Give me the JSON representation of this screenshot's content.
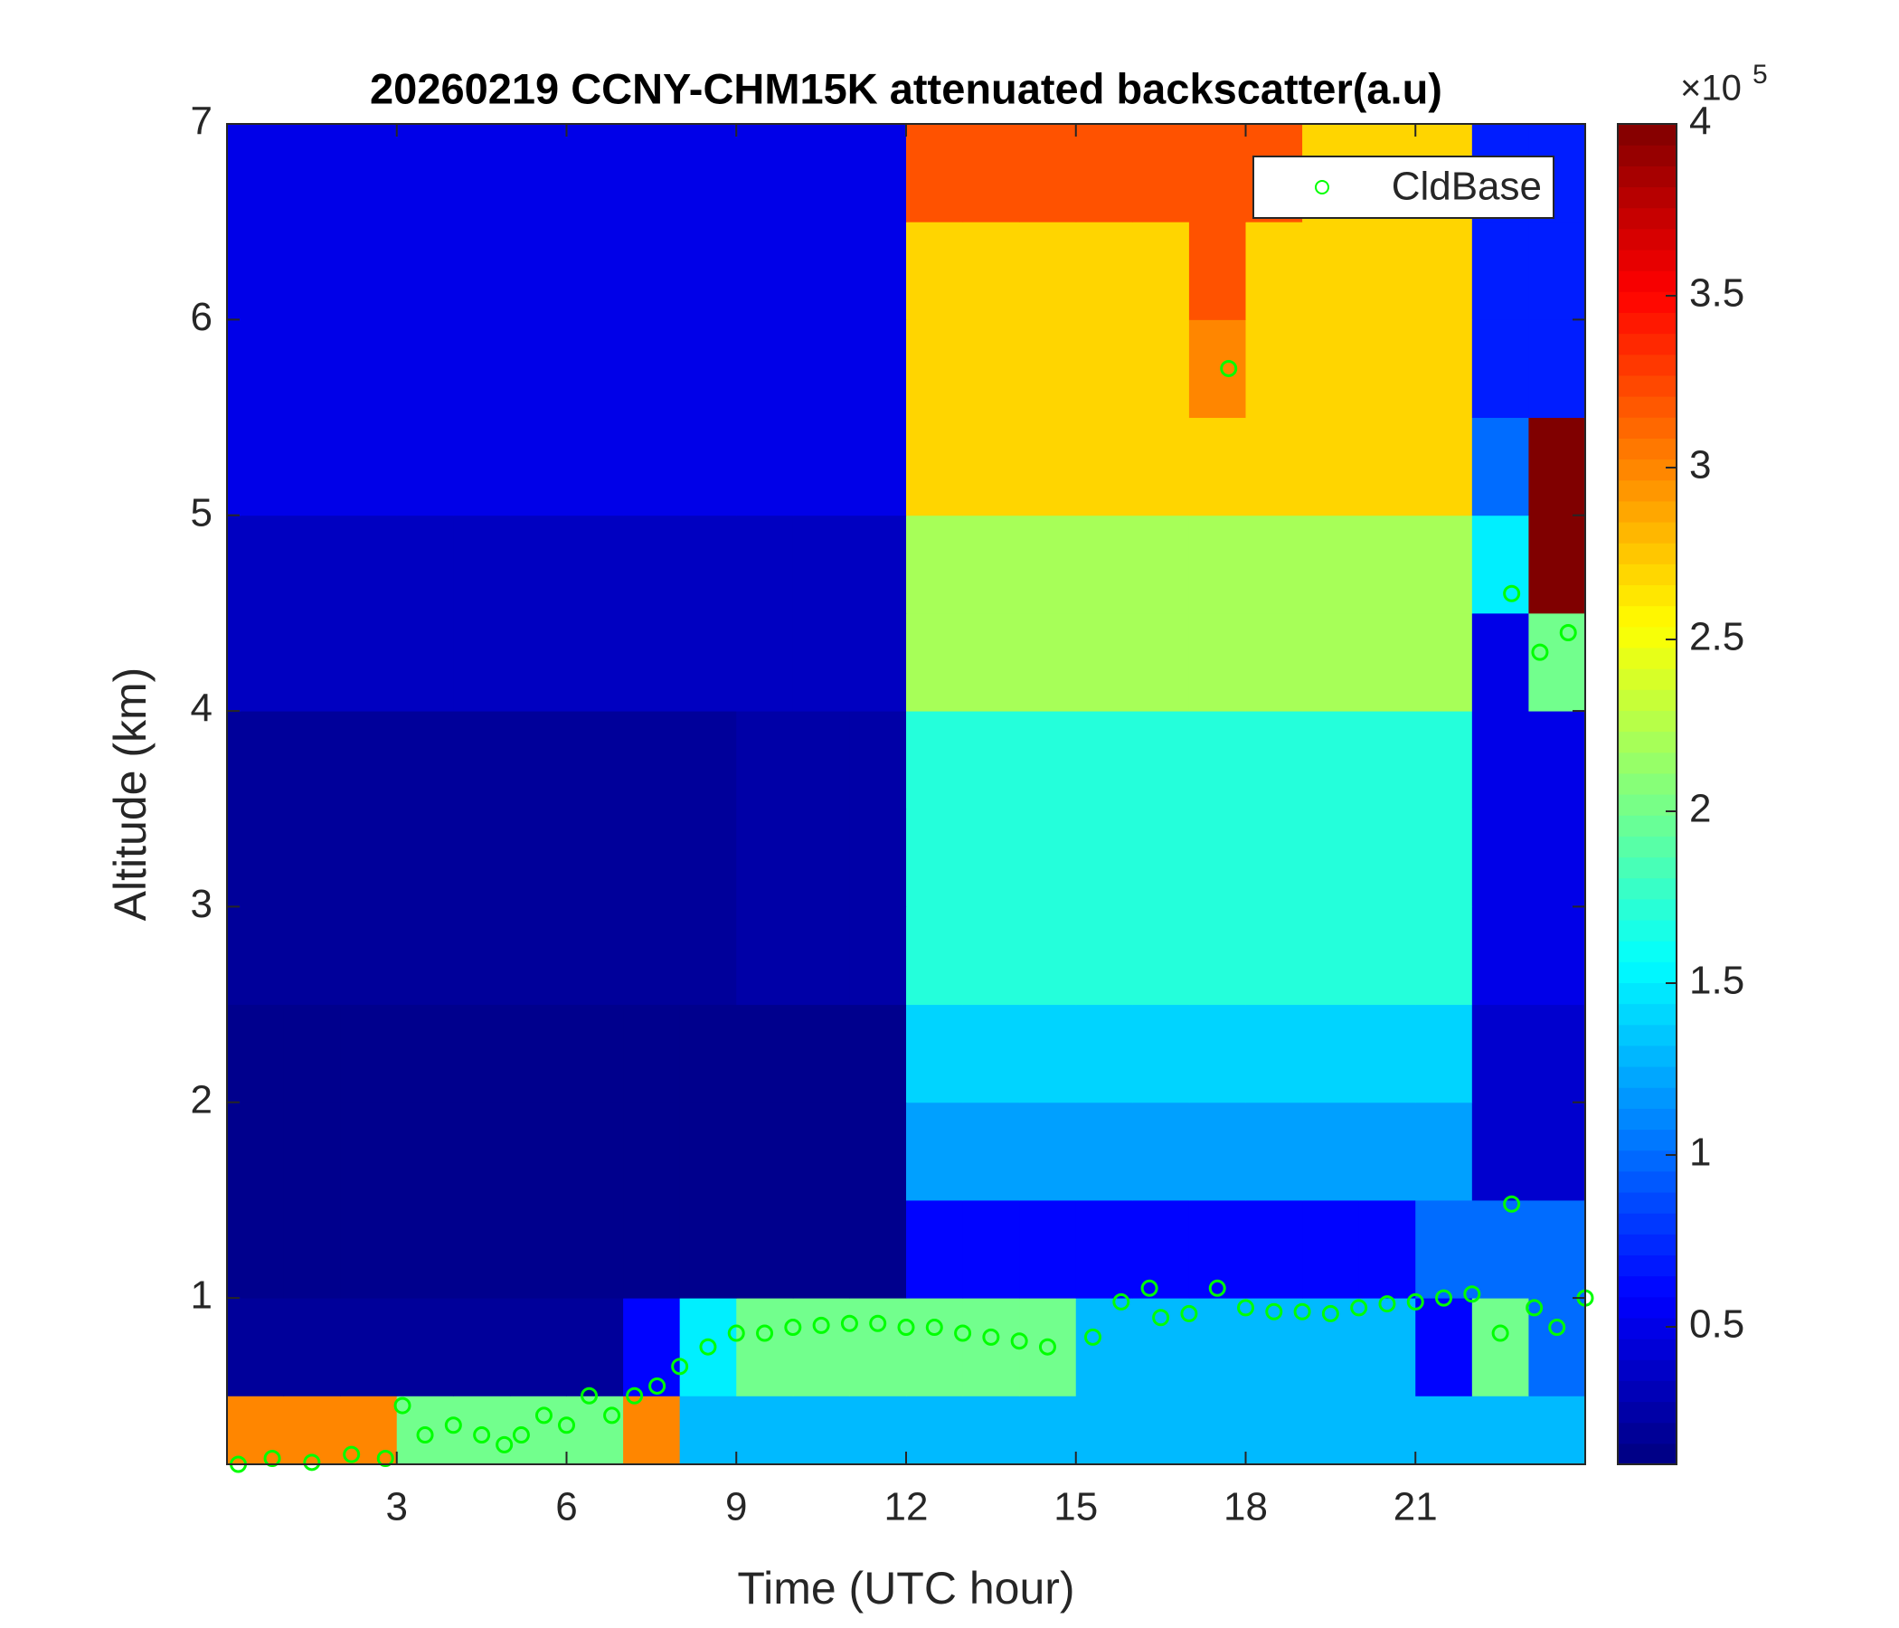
{
  "chart_data": {
    "type": "heatmap",
    "title": "20260219 CCNY-CHM15K attenuated backscatter(a.u)",
    "x_label": "Time (UTC hour)",
    "y_label": "Altitude (km)",
    "colorbar_multiplier": "×10",
    "colorbar_exponent": "5",
    "colormap": "jet",
    "x": [
      0.5,
      1.5,
      2.5,
      3.5,
      4.5,
      5.5,
      6.5,
      7.5,
      8.5,
      9.5,
      10.5,
      11.5,
      12.5,
      13.5,
      14.5,
      15.5,
      16.5,
      17.5,
      18.5,
      19.5,
      20.5,
      21.5,
      22.5,
      23.5
    ],
    "y": [
      0.25,
      0.75,
      1.25,
      1.75,
      2.25,
      2.75,
      3.25,
      3.75,
      4.25,
      4.75,
      5.25,
      5.75,
      6.25,
      6.75
    ],
    "z": [
      [
        300000,
        300000,
        300000,
        200000,
        200000,
        200000,
        200000,
        300000,
        130000,
        130000,
        130000,
        130000,
        130000,
        130000,
        130000,
        130000,
        130000,
        130000,
        130000,
        130000,
        130000,
        130000,
        130000,
        130000
      ],
      [
        20000,
        20000,
        20000,
        20000,
        20000,
        20000,
        20000,
        60000,
        150000,
        200000,
        200000,
        200000,
        200000,
        200000,
        200000,
        130000,
        130000,
        130000,
        130000,
        130000,
        130000,
        60000,
        200000,
        100000
      ],
      [
        15000,
        15000,
        15000,
        15000,
        15000,
        15000,
        15000,
        15000,
        15000,
        15000,
        15000,
        15000,
        60000,
        60000,
        60000,
        60000,
        60000,
        60000,
        60000,
        60000,
        60000,
        100000,
        100000,
        100000
      ],
      [
        15000,
        15000,
        15000,
        15000,
        15000,
        15000,
        15000,
        15000,
        15000,
        15000,
        15000,
        15000,
        120000,
        120000,
        120000,
        120000,
        120000,
        120000,
        120000,
        120000,
        120000,
        120000,
        40000,
        40000
      ],
      [
        15000,
        15000,
        15000,
        15000,
        15000,
        15000,
        15000,
        15000,
        15000,
        15000,
        15000,
        15000,
        140000,
        140000,
        140000,
        140000,
        140000,
        140000,
        140000,
        140000,
        140000,
        140000,
        40000,
        40000
      ],
      [
        20000,
        20000,
        20000,
        20000,
        20000,
        20000,
        20000,
        20000,
        20000,
        25000,
        25000,
        25000,
        170000,
        170000,
        170000,
        170000,
        170000,
        170000,
        170000,
        170000,
        170000,
        170000,
        50000,
        50000
      ],
      [
        20000,
        20000,
        20000,
        20000,
        20000,
        20000,
        20000,
        20000,
        20000,
        25000,
        25000,
        25000,
        170000,
        170000,
        170000,
        170000,
        170000,
        170000,
        170000,
        170000,
        170000,
        170000,
        50000,
        50000
      ],
      [
        20000,
        20000,
        20000,
        20000,
        20000,
        20000,
        20000,
        20000,
        20000,
        25000,
        25000,
        25000,
        170000,
        170000,
        170000,
        170000,
        170000,
        170000,
        170000,
        170000,
        170000,
        170000,
        50000,
        50000
      ],
      [
        35000,
        35000,
        35000,
        35000,
        35000,
        35000,
        35000,
        35000,
        35000,
        35000,
        35000,
        35000,
        220000,
        220000,
        220000,
        220000,
        220000,
        220000,
        220000,
        220000,
        220000,
        220000,
        50000,
        200000
      ],
      [
        35000,
        35000,
        35000,
        35000,
        35000,
        35000,
        35000,
        35000,
        35000,
        35000,
        35000,
        35000,
        220000,
        220000,
        220000,
        220000,
        220000,
        220000,
        220000,
        220000,
        220000,
        220000,
        150000,
        400000
      ],
      [
        50000,
        50000,
        50000,
        50000,
        50000,
        50000,
        50000,
        50000,
        50000,
        50000,
        50000,
        50000,
        270000,
        270000,
        270000,
        270000,
        270000,
        270000,
        270000,
        270000,
        270000,
        270000,
        100000,
        400000
      ],
      [
        50000,
        50000,
        50000,
        50000,
        50000,
        50000,
        50000,
        50000,
        50000,
        50000,
        50000,
        50000,
        270000,
        270000,
        270000,
        270000,
        270000,
        300000,
        270000,
        270000,
        270000,
        270000,
        70000,
        70000
      ],
      [
        50000,
        50000,
        50000,
        50000,
        50000,
        50000,
        50000,
        50000,
        50000,
        50000,
        50000,
        50000,
        270000,
        270000,
        270000,
        270000,
        270000,
        320000,
        270000,
        270000,
        270000,
        270000,
        70000,
        70000
      ],
      [
        50000,
        50000,
        50000,
        50000,
        50000,
        50000,
        50000,
        50000,
        50000,
        50000,
        50000,
        50000,
        320000,
        320000,
        320000,
        320000,
        320000,
        320000,
        320000,
        270000,
        270000,
        270000,
        70000,
        70000
      ]
    ],
    "zlim": [
      10000,
      400000
    ],
    "zticks": [
      {
        "value": 50000,
        "label": "0.5"
      },
      {
        "value": 100000,
        "label": "1"
      },
      {
        "value": 150000,
        "label": "1.5"
      },
      {
        "value": 200000,
        "label": "2"
      },
      {
        "value": 250000,
        "label": "2.5"
      },
      {
        "value": 300000,
        "label": "3"
      },
      {
        "value": 350000,
        "label": "3.5"
      },
      {
        "value": 400000,
        "label": "4"
      }
    ],
    "xlim": [
      0,
      24
    ],
    "xticks": [
      3,
      6,
      9,
      12,
      15,
      18,
      21
    ],
    "ylim": [
      0.15,
      7
    ],
    "yticks": [
      1,
      2,
      3,
      4,
      5,
      6,
      7
    ],
    "overlay": {
      "type": "scatter",
      "name": "CldBase",
      "color": "#00ff00",
      "legend": "upper right",
      "x": [
        0.2,
        0.8,
        1.5,
        2.2,
        2.8,
        3.1,
        3.5,
        4.0,
        4.5,
        4.9,
        5.2,
        5.6,
        6.0,
        6.4,
        6.8,
        7.2,
        7.6,
        8.0,
        8.5,
        9.0,
        9.5,
        10,
        10.5,
        11,
        11.5,
        12,
        12.5,
        13,
        13.5,
        14,
        14.5,
        15.3,
        15.8,
        16.3,
        16.5,
        17,
        17.5,
        17.7,
        18,
        18.5,
        19,
        19.5,
        20,
        20.5,
        21,
        21.5,
        22,
        22.5,
        22.7,
        22.7,
        23.1,
        23.2,
        23.5,
        23.7,
        24
      ],
      "y": [
        0.15,
        0.18,
        0.16,
        0.2,
        0.18,
        0.45,
        0.3,
        0.35,
        0.3,
        0.25,
        0.3,
        0.4,
        0.35,
        0.5,
        0.4,
        0.5,
        0.55,
        0.65,
        0.75,
        0.82,
        0.82,
        0.85,
        0.86,
        0.87,
        0.87,
        0.85,
        0.85,
        0.82,
        0.8,
        0.78,
        0.75,
        0.8,
        0.98,
        1.05,
        0.9,
        0.92,
        1.05,
        5.75,
        0.95,
        0.93,
        0.93,
        0.92,
        0.95,
        0.97,
        0.98,
        1.0,
        1.02,
        0.82,
        1.48,
        4.6,
        0.95,
        4.3,
        0.85,
        4.4,
        1.0
      ]
    }
  }
}
